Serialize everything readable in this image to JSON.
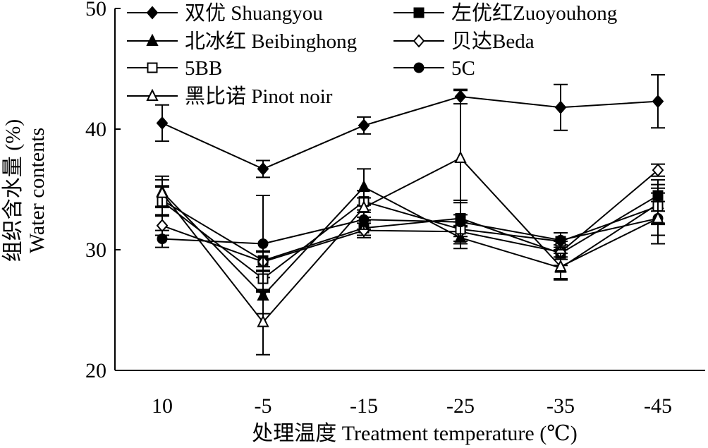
{
  "chart_data": {
    "type": "line",
    "xlabel": "处理温度 Treatment temperature (℃)",
    "ylabel_line1": "组织含水量",
    "ylabel_line1_unit": " (%)",
    "ylabel_line2": "Water contents",
    "categories": [
      "10",
      "-5",
      "-15",
      "-25",
      "-35",
      "-45"
    ],
    "ylim": [
      20,
      50
    ],
    "yticks": [
      "20",
      "30",
      "40",
      "50"
    ],
    "grid": false,
    "legend_placement": "top-left",
    "series": [
      {
        "name": "双优 Shuangyou",
        "marker": "diamond-filled",
        "values": [
          40.5,
          36.7,
          40.3,
          42.7,
          41.8,
          42.3
        ],
        "errors": [
          1.5,
          0.7,
          0.7,
          0.6,
          1.9,
          2.2
        ]
      },
      {
        "name": "左优红Zuoyouhong",
        "marker": "square-filled",
        "values": [
          34.1,
          29.1,
          31.8,
          32.6,
          29.7,
          34.5
        ],
        "errors": [
          1.2,
          0.8,
          0.6,
          1.5,
          1.0,
          1.3
        ]
      },
      {
        "name": "北冰红 Beibinghong",
        "marker": "triangle-filled",
        "values": [
          34.8,
          26.2,
          35.2,
          31.0,
          28.5,
          33.8
        ],
        "errors": [
          1.3,
          1.5,
          1.5,
          0.9,
          0.9,
          1.6
        ]
      },
      {
        "name": "贝达Beda",
        "marker": "diamond-open",
        "values": [
          32.0,
          29.0,
          31.6,
          31.5,
          29.8,
          36.6
        ],
        "errors": [
          0.8,
          0.8,
          0.6,
          0.8,
          0.6,
          0.5
        ]
      },
      {
        "name": "5BB",
        "marker": "square-open",
        "values": [
          34.0,
          27.6,
          34.0,
          31.7,
          30.7,
          33.6
        ],
        "errors": [
          1.2,
          1.0,
          0.9,
          1.2,
          0.7,
          1.5
        ]
      },
      {
        "name": "5C",
        "marker": "circle-filled",
        "values": [
          30.9,
          30.5,
          32.5,
          32.3,
          30.8,
          32.6
        ],
        "errors": [
          0.7,
          4.0,
          0.8,
          1.6,
          0.6,
          1.4
        ]
      },
      {
        "name": "黑比诺 Pinot noir",
        "marker": "triangle-open",
        "values": [
          34.7,
          24.0,
          33.5,
          37.6,
          28.6,
          32.6
        ],
        "errors": [
          1.1,
          2.7,
          0.8,
          5.6,
          1.1,
          2.1
        ]
      }
    ]
  }
}
